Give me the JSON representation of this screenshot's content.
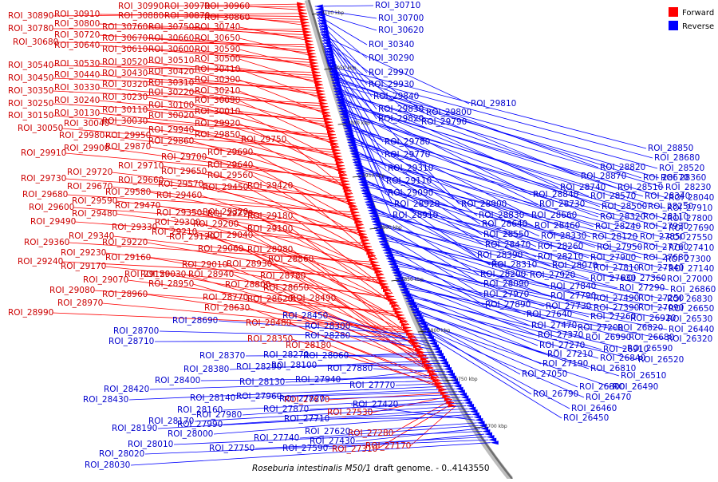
{
  "legend": {
    "forward_label": "Forward",
    "reverse_label": "Reverse",
    "forward_color": "#ff0000",
    "reverse_color": "#0000ff"
  },
  "caption": {
    "organism": "Roseburia intestinalis M50/1",
    "rest": " draft genome. - 0..4143550"
  },
  "ticks": [
    "3100 kbp",
    "3050 kbp",
    "3000 kbp",
    "2950 kbp",
    "2900 kbp",
    "2850 kbp",
    "2800 kbp",
    "2750 kbp",
    "2700 kbp"
  ],
  "forward_labels": [
    "ROI_30990",
    "ROI_30970",
    "ROI_30960",
    "ROI_30890",
    "ROI_30910",
    "ROI_30880",
    "ROI_30870",
    "ROI_30860",
    "ROI_30780",
    "ROI_30800",
    "ROI_30760",
    "ROI_30750",
    "ROI_30740",
    "ROI_30680",
    "ROI_30720",
    "ROI_30670",
    "ROI_30660",
    "ROI_30650",
    "ROI_30640",
    "ROI_30610",
    "ROI_30600",
    "ROI_30590",
    "ROI_30540",
    "ROI_30530",
    "ROI_30520",
    "ROI_30510",
    "ROI_30500",
    "ROI_30450",
    "ROI_30440",
    "ROI_30430",
    "ROI_30420",
    "ROI_30410",
    "ROI_30350",
    "ROI_30330",
    "ROI_30320",
    "ROI_30310",
    "ROI_30300",
    "ROI_30250",
    "ROI_30240",
    "ROI_30230",
    "ROI_30220",
    "ROI_30210",
    "ROI_30150",
    "ROI_30130",
    "ROI_30110",
    "ROI_30100",
    "ROI_30090",
    "ROI_30050",
    "ROI_30040",
    "ROI_30030",
    "ROI_30020",
    "ROI_30010",
    "ROI_29980",
    "ROI_29950",
    "ROI_29940",
    "ROI_29920",
    "ROI_29910",
    "ROI_29900",
    "ROI_29870",
    "ROI_29860",
    "ROI_29850",
    "ROI_29750",
    "ROI_29730",
    "ROI_29720",
    "ROI_29710",
    "ROI_29700",
    "ROI_29690",
    "ROI_29680",
    "ROI_29670",
    "ROI_29660",
    "ROI_29650",
    "ROI_29640",
    "ROI_29600",
    "ROI_29590",
    "ROI_29580",
    "ROI_29570",
    "ROI_29560",
    "ROI_29490",
    "ROI_29480",
    "ROI_29470",
    "ROI_29460",
    "ROI_29450",
    "ROI_29420",
    "ROI_29360",
    "ROI_29340",
    "ROI_29330",
    "ROI_29350",
    "ROI_29320",
    "ROI_29240",
    "ROI_29230",
    "ROI_29220",
    "ROI_29300",
    "ROI_29270",
    "ROI_29180",
    "ROI_29170",
    "ROI_29160",
    "ROI_29210",
    "ROI_29200",
    "ROI_29100",
    "ROI_29080",
    "ROI_29070",
    "ROI_29150",
    "ROI_29120",
    "ROI_29040",
    "ROI_28990",
    "ROI_28970",
    "ROI_28960",
    "ROI_29060",
    "ROI_28980",
    "ROI_29030",
    "ROI_29010",
    "ROI_28930",
    "ROI_28950",
    "ROI_28940",
    "ROI_28860",
    "ROI_28800",
    "ROI_28780",
    "ROI_28770",
    "ROI_28650",
    "ROI_28620",
    "ROI_28490",
    "ROI_28630",
    "ROI_28480",
    "ROI_28350",
    "ROI_28180",
    "ROI_27670",
    "ROI_27530",
    "ROI_27280",
    "ROI_27310",
    "ROI_27170"
  ],
  "reverse_labels": [
    "ROI_30710",
    "ROI_30700",
    "ROI_30620",
    "ROI_30340",
    "ROI_30290",
    "ROI_29970",
    "ROI_29930",
    "ROI_29840",
    "ROI_29830",
    "ROI_29820",
    "ROI_29810",
    "ROI_29800",
    "ROI_29790",
    "ROI_29780",
    "ROI_29770",
    "ROI_29310",
    "ROI_29110",
    "ROI_29090",
    "ROI_28920",
    "ROI_28910",
    "ROI_28900",
    "ROI_28850",
    "ROI_28820",
    "ROI_28680",
    "ROI_28870",
    "ROI_28670",
    "ROI_28520",
    "ROI_28360",
    "ROI_28740",
    "ROI_28510",
    "ROI_28230",
    "ROI_28840",
    "ROI_28570",
    "ROI_28340",
    "ROI_28040",
    "ROI_28730",
    "ROI_28500",
    "ROI_28250",
    "ROI_27910",
    "ROI_28830",
    "ROI_28660",
    "ROI_28320",
    "ROI_28110",
    "ROI_27800",
    "ROI_28640",
    "ROI_28460",
    "ROI_28240",
    "ROI_27930",
    "ROI_27690",
    "ROI_28550",
    "ROI_28330",
    "ROI_28120",
    "ROI_27850",
    "ROI_27550",
    "ROI_28470",
    "ROI_28260",
    "ROI_27950",
    "ROI_27760",
    "ROI_27410",
    "ROI_28390",
    "ROI_28210",
    "ROI_27900",
    "ROI_27680",
    "ROI_27300",
    "ROI_28310",
    "ROI_28070",
    "ROI_27810",
    "ROI_27540",
    "ROI_27140",
    "ROI_28200",
    "ROI_27920",
    "ROI_27630",
    "ROI_27360",
    "ROI_27000",
    "ROI_28090",
    "ROI_27840",
    "ROI_27290",
    "ROI_26860",
    "ROI_27970",
    "ROI_27790",
    "ROI_27490",
    "ROI_27250",
    "ROI_26830",
    "ROI_27890",
    "ROI_27730",
    "ROI_27390",
    "ROI_27090",
    "ROI_26650",
    "ROI_27640",
    "ROI_27260",
    "ROI_26920",
    "ROI_26530",
    "ROI_27470",
    "ROI_27200",
    "ROI_26820",
    "ROI_26440",
    "ROI_27370",
    "ROI_26990",
    "ROI_26680",
    "ROI_26320",
    "ROI_27270",
    "ROI_26910",
    "ROI_26590",
    "ROI_27210",
    "ROI_26840",
    "ROI_26520",
    "ROI_27190",
    "ROI_26810",
    "ROI_26510",
    "ROI_27050",
    "ROI_26800",
    "ROI_26490",
    "ROI_26790",
    "ROI_26470",
    "ROI_26460",
    "ROI_26450",
    "ROI_28690",
    "ROI_28700",
    "ROI_28710",
    "ROI_28450",
    "ROI_28300",
    "ROI_28280",
    "ROI_28060",
    "ROI_28370",
    "ROI_28270",
    "ROI_28380",
    "ROI_28290",
    "ROI_28100",
    "ROI_27940",
    "ROI_27880",
    "ROI_28130",
    "ROI_28400",
    "ROI_28420",
    "ROI_27770",
    "ROI_28430",
    "ROI_28140",
    "ROI_27960",
    "ROI_27820",
    "ROI_28160",
    "ROI_27980",
    "ROI_27870",
    "ROI_28170",
    "ROI_27990",
    "ROI_28190",
    "ROI_28000",
    "ROI_27710",
    "ROI_27420",
    "ROI_27620",
    "ROI_27740",
    "ROI_27430",
    "ROI_28010",
    "ROI_27590",
    "ROI_27750",
    "ROI_28020",
    "ROI_28030"
  ]
}
